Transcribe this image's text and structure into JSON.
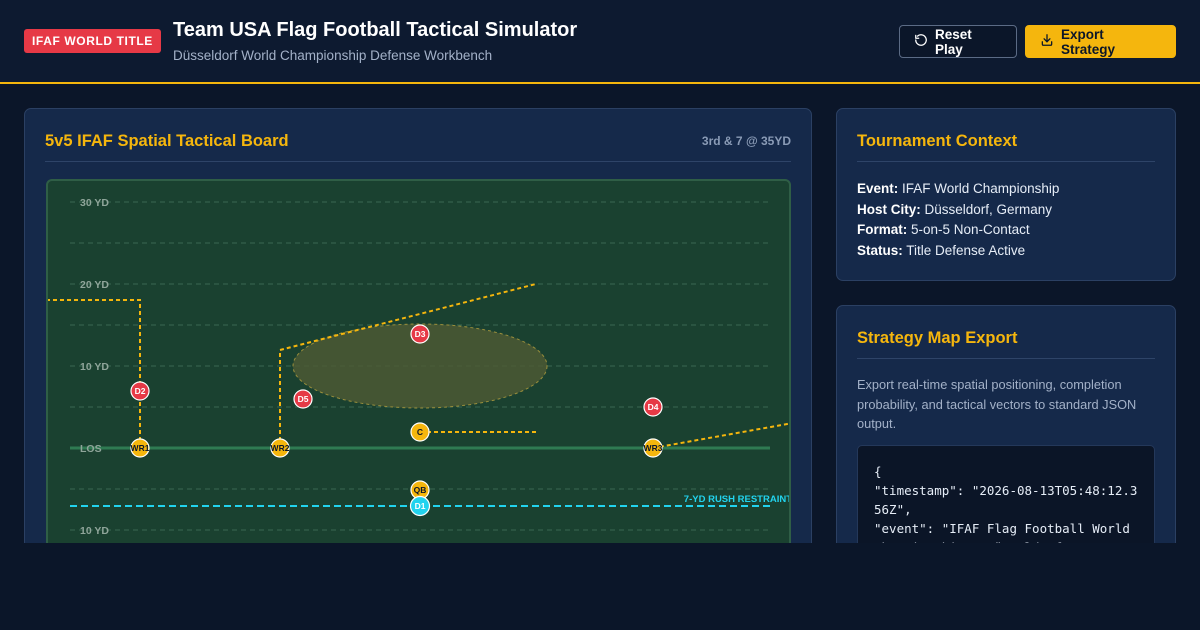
{
  "header": {
    "badge": "IFAF WORLD TITLE",
    "title": "Team USA Flag Football Tactical Simulator",
    "subtitle": "Düsseldorf World Championship Defense Workbench",
    "reset_label": "Reset Play",
    "export_label": "Export Strategy"
  },
  "board": {
    "title": "5v5 IFAF Spatial Tactical Board",
    "situation": "3rd & 7 @ 35YD",
    "yard_labels": [
      "30 YD",
      "20 YD",
      "10 YD",
      "LOS",
      "10 YD"
    ],
    "restraint_label": "7-YD RUSH RESTRAINT",
    "offense": [
      "WR1",
      "WR2",
      "C",
      "QB",
      "WR3"
    ],
    "defense": [
      "D2",
      "D5",
      "D3",
      "D4",
      "D1"
    ]
  },
  "context": {
    "title": "Tournament Context",
    "rows": [
      {
        "label": "Event:",
        "value": "IFAF World Championship"
      },
      {
        "label": "Host City:",
        "value": "Düsseldorf, Germany"
      },
      {
        "label": "Format:",
        "value": "5-on-5 Non-Contact"
      },
      {
        "label": "Status:",
        "value": "Title Defense Active"
      }
    ]
  },
  "export": {
    "title": "Strategy Map Export",
    "description": "Export real-time spatial positioning, completion probability, and tactical vectors to standard JSON output.",
    "code": "{\n\"timestamp\": \"2026-08-13T05:48:12.356Z\",\n\"event\": \"IFAF Flag Football World Championship - Düsseldorf\","
  },
  "colors": {
    "accent": "#f5b60d",
    "badge": "#e63946",
    "defense": "#e63946",
    "rush": "#22d3ee",
    "field": "#1a4130"
  },
  "icons": {
    "reset": "rotate-ccw-icon",
    "export": "download-icon"
  }
}
